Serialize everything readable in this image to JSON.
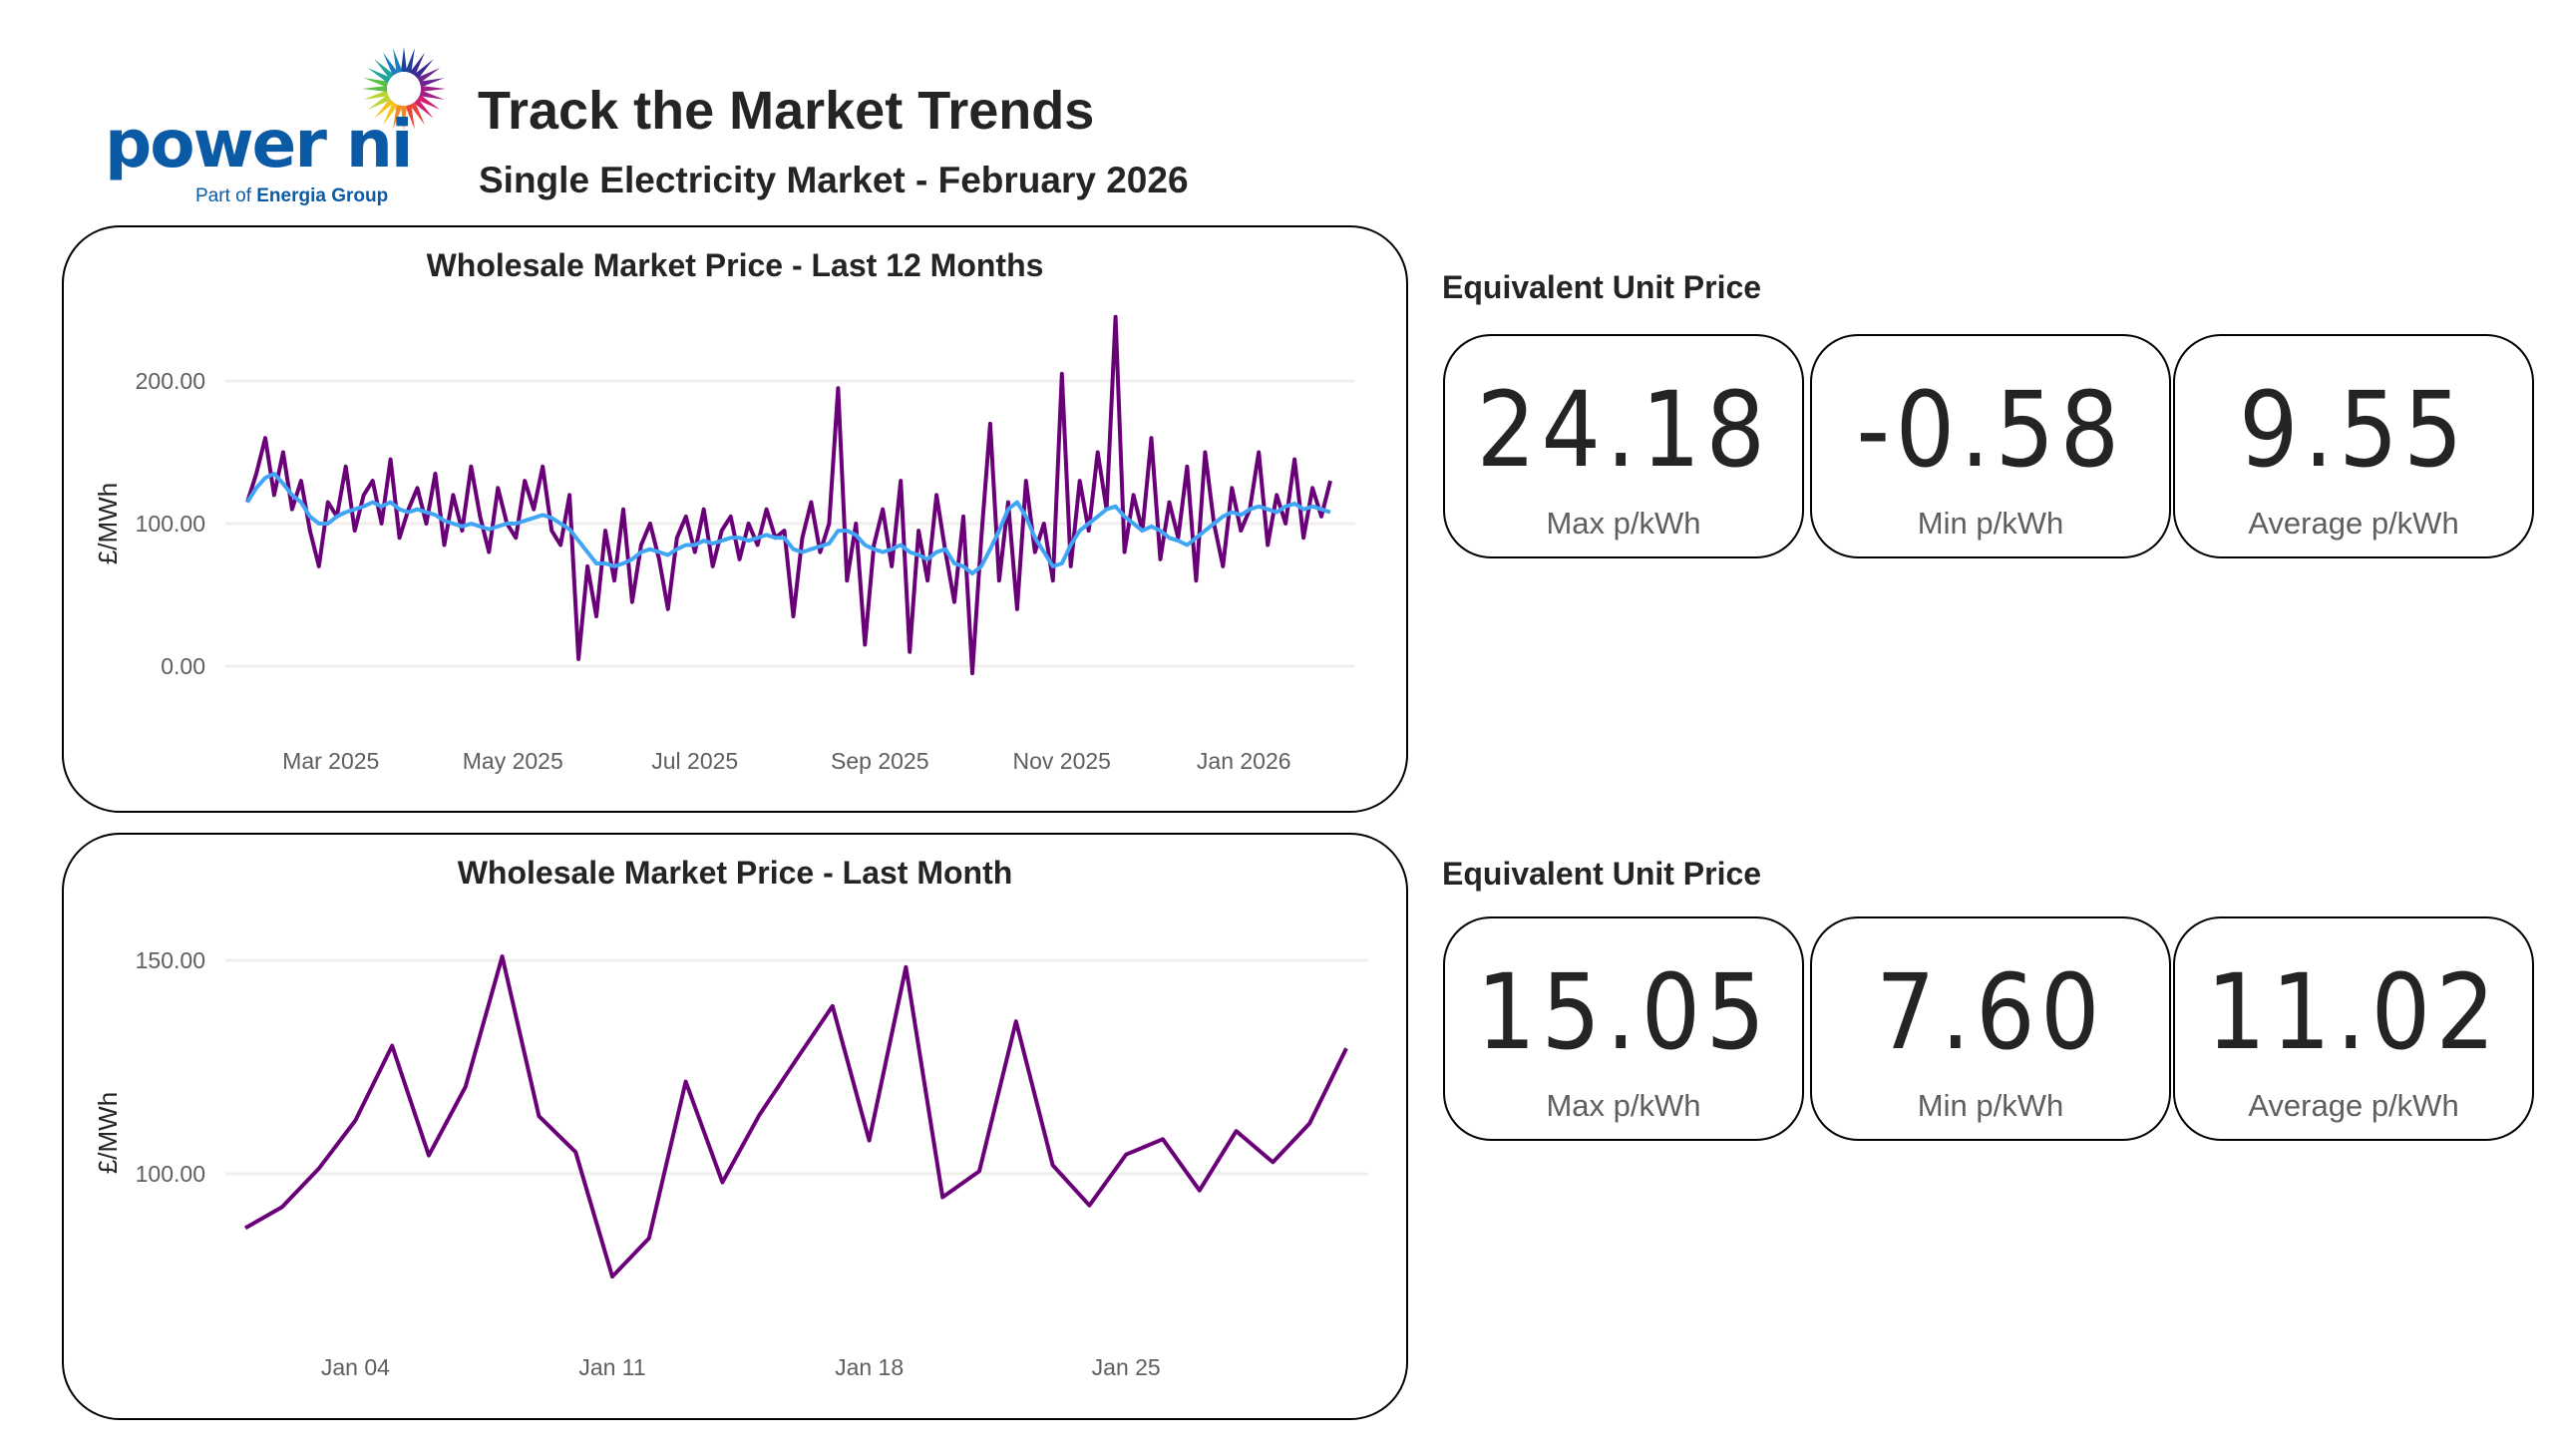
{
  "brand": {
    "logo_text": "power ni",
    "logo_sub_prefix": "Part of ",
    "logo_sub_bold": "Energia Group"
  },
  "header": {
    "title": "Track the Market Trends",
    "subtitle": "Single Electricity Market - February 2026"
  },
  "kpis": [
    {
      "heading": "Equivalent Unit Price",
      "tiles": [
        {
          "value": "24.18",
          "label": "Max p/kWh"
        },
        {
          "value": "-0.58",
          "label": "Min p/kWh"
        },
        {
          "value": "9.55",
          "label": "Average p/kWh"
        }
      ]
    },
    {
      "heading": "Equivalent Unit Price",
      "tiles": [
        {
          "value": "15.05",
          "label": "Max p/kWh"
        },
        {
          "value": "7.60",
          "label": "Min p/kWh"
        },
        {
          "value": "11.02",
          "label": "Average p/kWh"
        }
      ]
    }
  ],
  "colors": {
    "price_line": "#6a0077",
    "average_line": "#41a5f5",
    "gridline": "#f0efee",
    "brand_blue": "#0b5aa6"
  },
  "chart_data": [
    {
      "type": "line",
      "title": "Wholesale Market Price - Last 12 Months",
      "ylabel": "£/MWh",
      "xlabel": "",
      "ylim": [
        -20,
        250
      ],
      "yticks": [
        "0.00",
        "100.00",
        "200.00"
      ],
      "ytick_values": [
        0,
        100,
        200
      ],
      "xticks": [
        {
          "label": "Mar 2025",
          "date": "2025-03-01"
        },
        {
          "label": "May 2025",
          "date": "2025-05-01"
        },
        {
          "label": "Jul 2025",
          "date": "2025-07-01"
        },
        {
          "label": "Sep 2025",
          "date": "2025-09-01"
        },
        {
          "label": "Nov 2025",
          "date": "2025-11-01"
        },
        {
          "label": "Jan 2026",
          "date": "2026-01-01"
        }
      ],
      "grid": true,
      "x": [
        "2025-02-01",
        "2025-02-04",
        "2025-02-07",
        "2025-02-10",
        "2025-02-13",
        "2025-02-16",
        "2025-02-19",
        "2025-02-22",
        "2025-02-25",
        "2025-02-28",
        "2025-03-03",
        "2025-03-06",
        "2025-03-09",
        "2025-03-12",
        "2025-03-15",
        "2025-03-18",
        "2025-03-21",
        "2025-03-24",
        "2025-03-27",
        "2025-03-30",
        "2025-04-02",
        "2025-04-05",
        "2025-04-08",
        "2025-04-11",
        "2025-04-14",
        "2025-04-17",
        "2025-04-20",
        "2025-04-23",
        "2025-04-26",
        "2025-04-29",
        "2025-05-02",
        "2025-05-05",
        "2025-05-08",
        "2025-05-11",
        "2025-05-14",
        "2025-05-17",
        "2025-05-20",
        "2025-05-23",
        "2025-05-26",
        "2025-05-29",
        "2025-06-01",
        "2025-06-04",
        "2025-06-07",
        "2025-06-10",
        "2025-06-13",
        "2025-06-16",
        "2025-06-19",
        "2025-06-22",
        "2025-06-25",
        "2025-06-28",
        "2025-07-01",
        "2025-07-04",
        "2025-07-07",
        "2025-07-10",
        "2025-07-13",
        "2025-07-16",
        "2025-07-19",
        "2025-07-22",
        "2025-07-25",
        "2025-07-28",
        "2025-07-31",
        "2025-08-03",
        "2025-08-06",
        "2025-08-09",
        "2025-08-12",
        "2025-08-15",
        "2025-08-18",
        "2025-08-21",
        "2025-08-24",
        "2025-08-27",
        "2025-08-30",
        "2025-09-02",
        "2025-09-05",
        "2025-09-08",
        "2025-09-11",
        "2025-09-14",
        "2025-09-17",
        "2025-09-20",
        "2025-09-23",
        "2025-09-26",
        "2025-09-29",
        "2025-10-02",
        "2025-10-05",
        "2025-10-08",
        "2025-10-11",
        "2025-10-14",
        "2025-10-17",
        "2025-10-20",
        "2025-10-23",
        "2025-10-26",
        "2025-10-29",
        "2025-11-01",
        "2025-11-04",
        "2025-11-07",
        "2025-11-10",
        "2025-11-13",
        "2025-11-16",
        "2025-11-19",
        "2025-11-22",
        "2025-11-25",
        "2025-11-28",
        "2025-12-01",
        "2025-12-04",
        "2025-12-07",
        "2025-12-10",
        "2025-12-13",
        "2025-12-16",
        "2025-12-19",
        "2025-12-22",
        "2025-12-25",
        "2025-12-28",
        "2025-12-31",
        "2026-01-03",
        "2026-01-06",
        "2026-01-09",
        "2026-01-12",
        "2026-01-15",
        "2026-01-18",
        "2026-01-21",
        "2026-01-24",
        "2026-01-27",
        "2026-01-30"
      ],
      "series": [
        {
          "values": [
            115,
            135,
            160,
            120,
            150,
            110,
            130,
            95,
            70,
            115,
            105,
            140,
            95,
            120,
            130,
            100,
            145,
            90,
            110,
            125,
            100,
            135,
            85,
            120,
            95,
            140,
            105,
            80,
            125,
            100,
            90,
            130,
            110,
            140,
            95,
            85,
            120,
            5,
            70,
            35,
            95,
            60,
            110,
            45,
            85,
            100,
            75,
            40,
            90,
            105,
            80,
            110,
            70,
            95,
            105,
            75,
            100,
            85,
            110,
            90,
            95,
            35,
            90,
            115,
            80,
            100,
            195,
            60,
            100,
            15,
            85,
            110,
            70,
            130,
            10,
            95,
            60,
            120,
            80,
            45,
            105,
            -5,
            90,
            170,
            60,
            115,
            40,
            130,
            80,
            100,
            60,
            205,
            70,
            130,
            95,
            150,
            110,
            245,
            80,
            120,
            95,
            160,
            75,
            115,
            90,
            140,
            60,
            150,
            100,
            70,
            125,
            95,
            110,
            150,
            85,
            120,
            100,
            145,
            90,
            125,
            105,
            130
          ]
        },
        {
          "values": [
            115,
            125,
            132,
            135,
            128,
            120,
            115,
            105,
            100,
            100,
            105,
            108,
            110,
            112,
            115,
            112,
            115,
            110,
            108,
            110,
            108,
            106,
            102,
            100,
            98,
            100,
            98,
            96,
            98,
            100,
            100,
            102,
            104,
            106,
            104,
            100,
            96,
            88,
            80,
            72,
            72,
            70,
            72,
            75,
            80,
            82,
            80,
            78,
            82,
            85,
            85,
            88,
            86,
            88,
            90,
            90,
            88,
            90,
            92,
            90,
            90,
            82,
            80,
            82,
            84,
            86,
            95,
            95,
            92,
            85,
            82,
            80,
            82,
            85,
            80,
            78,
            75,
            80,
            82,
            72,
            70,
            65,
            70,
            82,
            95,
            110,
            115,
            105,
            90,
            80,
            70,
            72,
            85,
            95,
            100,
            105,
            110,
            112,
            105,
            100,
            95,
            98,
            95,
            90,
            88,
            85,
            90,
            95,
            100,
            105,
            108,
            106,
            110,
            112,
            110,
            108,
            112,
            114,
            110,
            112,
            110,
            108
          ]
        }
      ]
    },
    {
      "type": "line",
      "title": "Wholesale Market Price - Last Month",
      "ylabel": "£/MWh",
      "xlabel": "",
      "ylim": [
        60,
        160
      ],
      "yticks": [
        "100.00",
        "150.00"
      ],
      "ytick_values": [
        100,
        150
      ],
      "xticks": [
        {
          "label": "Jan 04",
          "day": 4
        },
        {
          "label": "Jan 11",
          "day": 11
        },
        {
          "label": "Jan 18",
          "day": 18
        },
        {
          "label": "Jan 25",
          "day": 25
        }
      ],
      "grid": true,
      "x": [
        1,
        2,
        3,
        4,
        5,
        6,
        7,
        8,
        9,
        10,
        11,
        12,
        13,
        14,
        15,
        16,
        17,
        18,
        19,
        20,
        21,
        22,
        23,
        24,
        25,
        26,
        27,
        28,
        29,
        30,
        31
      ],
      "series": [
        {
          "values": [
            87.3,
            92.2,
            101.2,
            112.5,
            130.0,
            104.3,
            120.4,
            150.9,
            113.5,
            105.1,
            75.9,
            84.9,
            121.6,
            98.0,
            113.7,
            126.6,
            139.3,
            107.8,
            148.4,
            94.5,
            100.6,
            135.7,
            102.0,
            92.6,
            104.5,
            108.1,
            96.1,
            110.0,
            102.7,
            111.8,
            129.4
          ]
        }
      ]
    }
  ]
}
